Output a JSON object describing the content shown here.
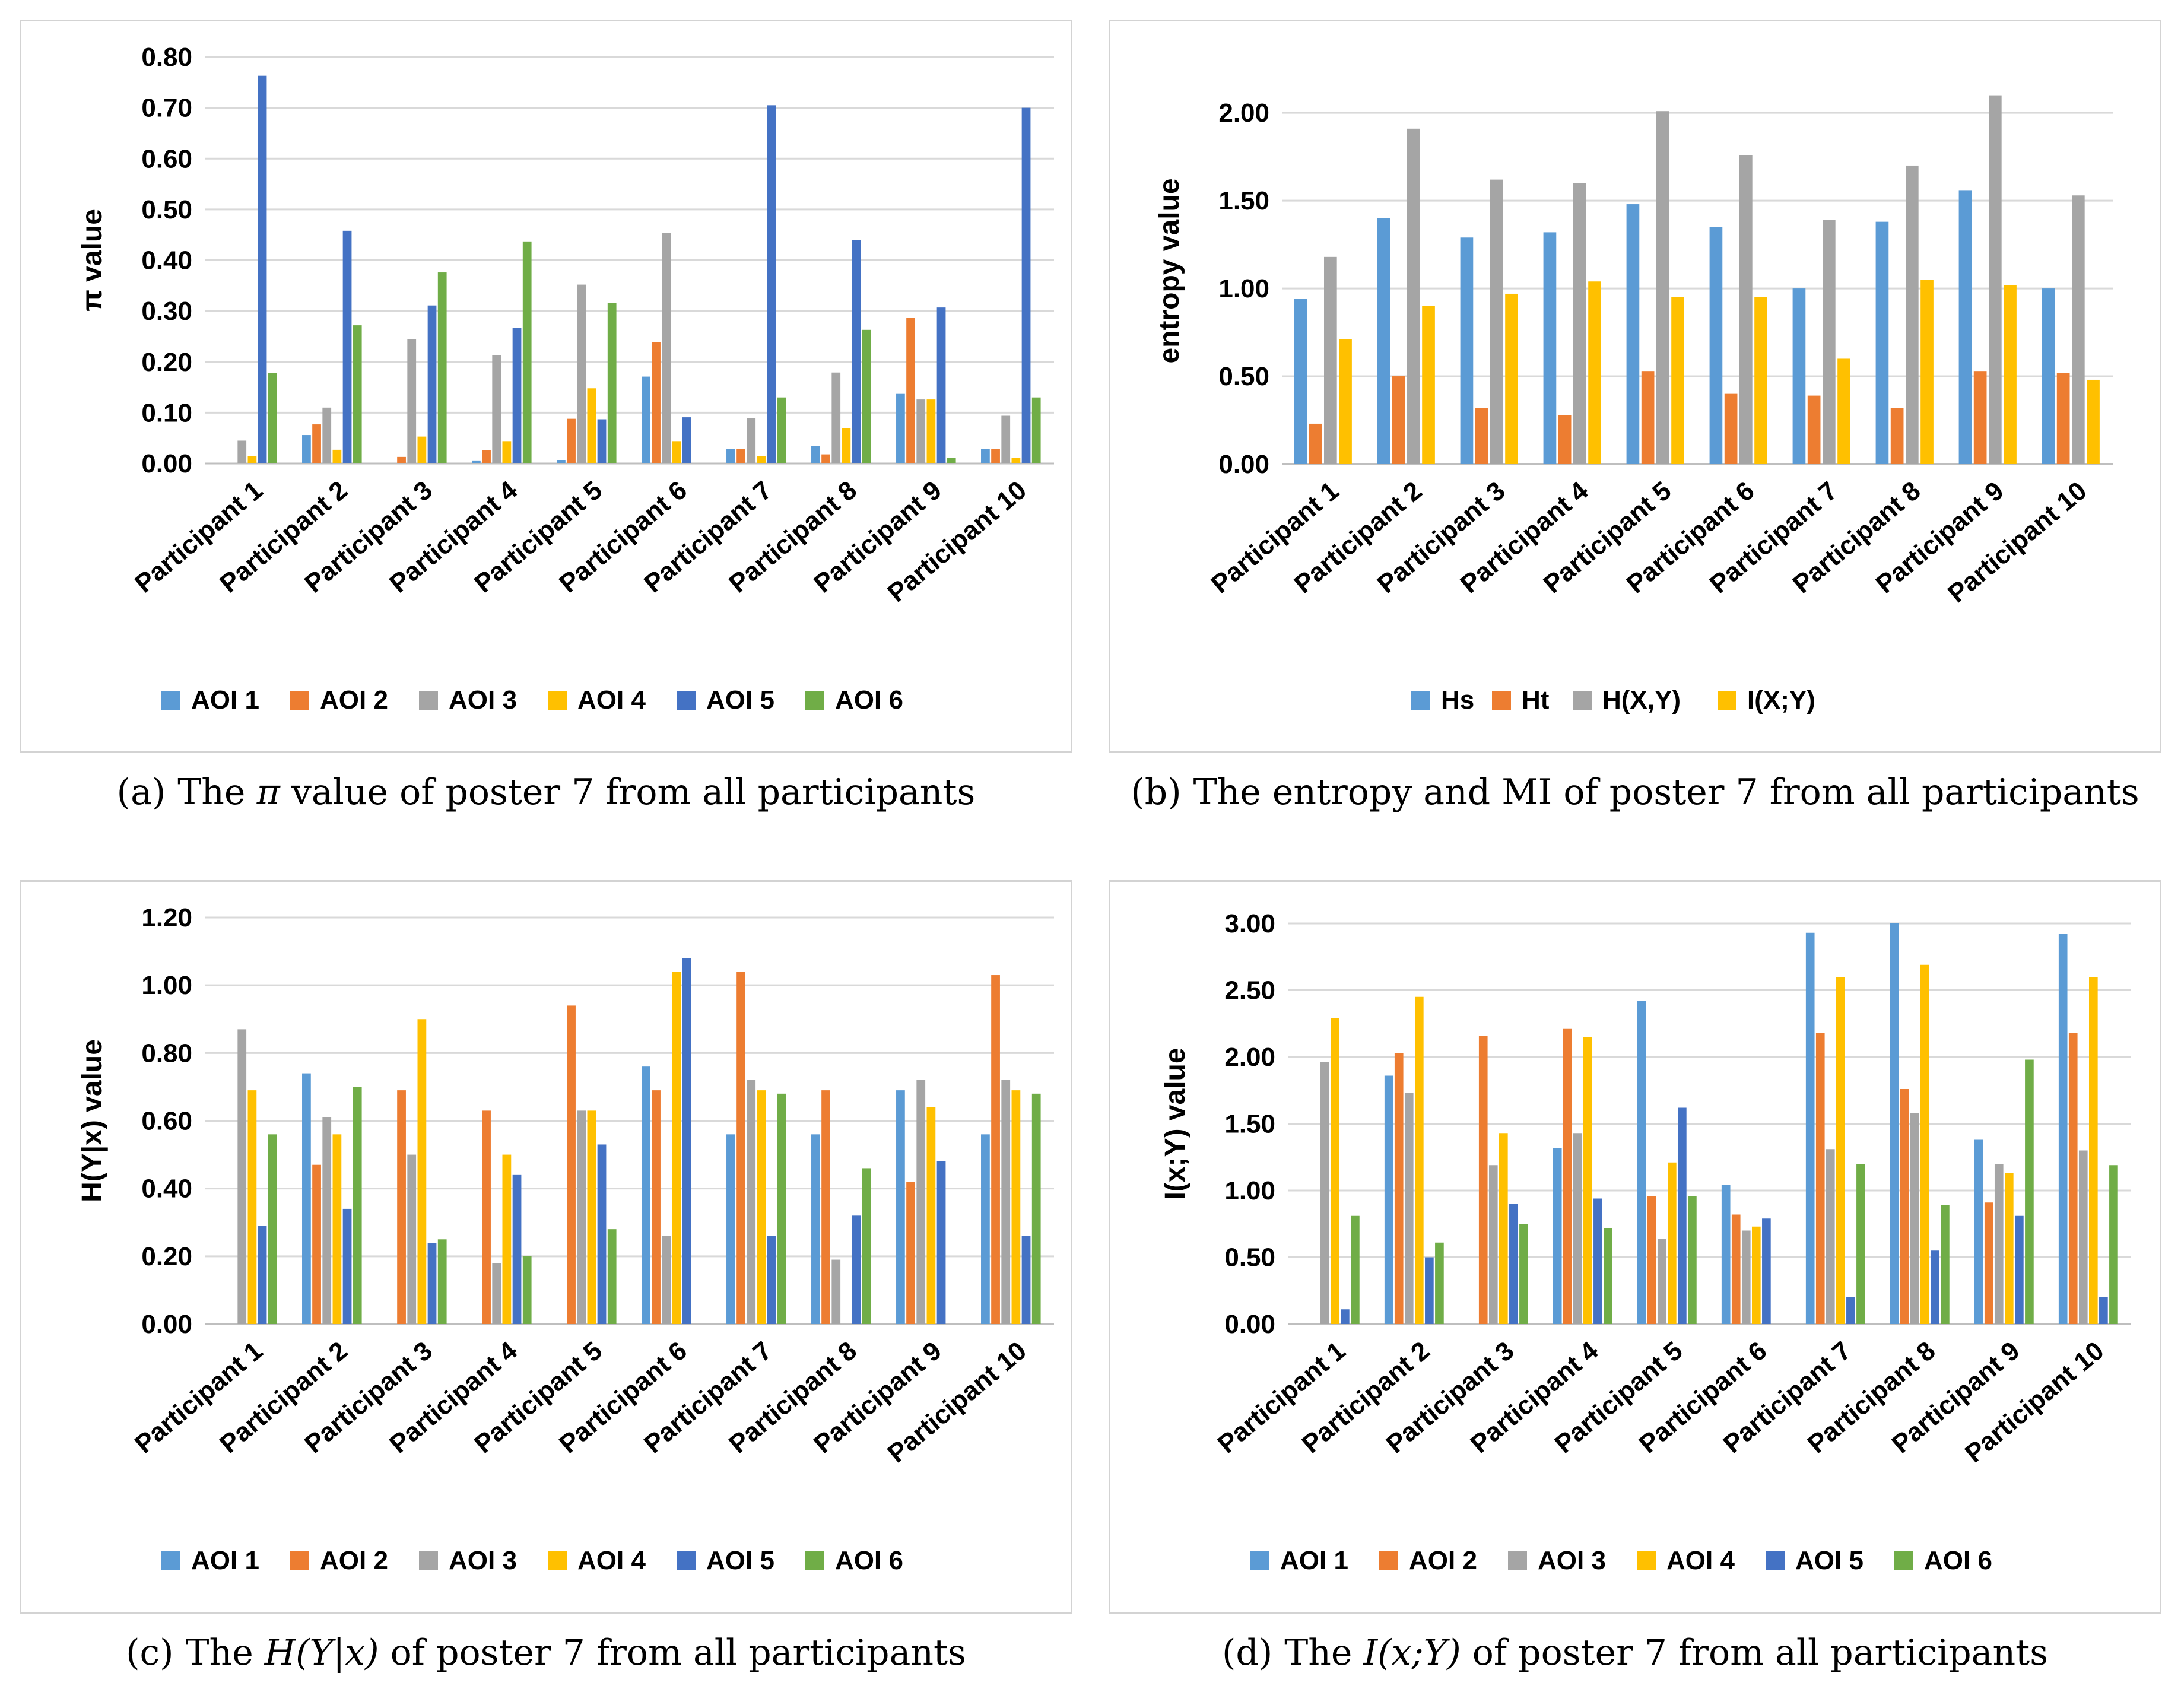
{
  "colors": [
    "#5b9bd5",
    "#ed7d31",
    "#a5a5a5",
    "#ffc000",
    "#4472c4",
    "#70ad47"
  ],
  "chart_data": [
    {
      "id": "a",
      "type": "bar",
      "ylabel": "π  value",
      "ylim": [
        0,
        0.8
      ],
      "ytick_step": 0.1,
      "yticks_decimals": 2,
      "grid": true,
      "legend_position": "bottom",
      "categories": [
        "Participant 1",
        "Participant 2",
        "Participant 3",
        "Participant 4",
        "Participant 5",
        "Participant 6",
        "Participant 7",
        "Participant 8",
        "Participant 9",
        "Participant 10"
      ],
      "series": [
        {
          "name": "AOI 1",
          "values": [
            0.0,
            0.056,
            0.0,
            0.006,
            0.007,
            0.171,
            0.029,
            0.034,
            0.137,
            0.029
          ]
        },
        {
          "name": "AOI 2",
          "values": [
            0.0,
            0.077,
            0.013,
            0.026,
            0.088,
            0.239,
            0.029,
            0.018,
            0.287,
            0.029
          ]
        },
        {
          "name": "AOI 3",
          "values": [
            0.045,
            0.11,
            0.245,
            0.213,
            0.352,
            0.454,
            0.089,
            0.179,
            0.126,
            0.094
          ]
        },
        {
          "name": "AOI 4",
          "values": [
            0.014,
            0.027,
            0.053,
            0.044,
            0.148,
            0.044,
            0.014,
            0.07,
            0.126,
            0.011
          ]
        },
        {
          "name": "AOI 5",
          "values": [
            0.763,
            0.458,
            0.311,
            0.267,
            0.087,
            0.091,
            0.705,
            0.44,
            0.307,
            0.7
          ]
        },
        {
          "name": "AOI 6",
          "values": [
            0.178,
            0.272,
            0.376,
            0.437,
            0.316,
            0.0,
            0.13,
            0.263,
            0.011,
            0.13
          ]
        }
      ]
    },
    {
      "id": "b",
      "type": "bar",
      "ylabel": "entropy  value",
      "ylim": [
        0,
        2.2
      ],
      "ytick_max": 2.0,
      "ytick_step": 0.5,
      "yticks_decimals": 2,
      "grid": true,
      "legend_position": "bottom",
      "categories": [
        "Participant 1",
        "Participant 2",
        "Participant 3",
        "Participant 4",
        "Participant 5",
        "Participant 6",
        "Participant 7",
        "Participant 8",
        "Participant 9",
        "Participant 10"
      ],
      "series": [
        {
          "name": "Hs",
          "values": [
            0.94,
            1.4,
            1.29,
            1.32,
            1.48,
            1.35,
            1.0,
            1.38,
            1.56,
            1.0
          ]
        },
        {
          "name": "Ht",
          "values": [
            0.23,
            0.5,
            0.32,
            0.28,
            0.53,
            0.4,
            0.39,
            0.32,
            0.53,
            0.52
          ]
        },
        {
          "name": "H(X,Y)",
          "values": [
            1.18,
            1.91,
            1.62,
            1.6,
            2.01,
            1.76,
            1.39,
            1.7,
            2.1,
            1.53
          ]
        },
        {
          "name": "I(X;Y)",
          "values": [
            0.71,
            0.9,
            0.97,
            1.04,
            0.95,
            0.95,
            0.6,
            1.05,
            1.02,
            0.48
          ]
        }
      ]
    },
    {
      "id": "c",
      "type": "bar",
      "ylabel": "H(Y|x)  value",
      "ylim": [
        0,
        1.2
      ],
      "ytick_step": 0.2,
      "yticks_decimals": 2,
      "grid": true,
      "legend_position": "bottom",
      "categories": [
        "Participant 1",
        "Participant 2",
        "Participant 3",
        "Participant 4",
        "Participant 5",
        "Participant 6",
        "Participant 7",
        "Participant 8",
        "Participant 9",
        "Participant 10"
      ],
      "series": [
        {
          "name": "AOI 1",
          "values": [
            0.0,
            0.74,
            0.0,
            0.0,
            0.0,
            0.76,
            0.56,
            0.56,
            0.69,
            0.56
          ]
        },
        {
          "name": "AOI 2",
          "values": [
            0.0,
            0.47,
            0.69,
            0.63,
            0.94,
            0.69,
            1.04,
            0.69,
            0.42,
            1.03
          ]
        },
        {
          "name": "AOI 3",
          "values": [
            0.87,
            0.61,
            0.5,
            0.18,
            0.63,
            0.26,
            0.72,
            0.19,
            0.72,
            0.72
          ]
        },
        {
          "name": "AOI 4",
          "values": [
            0.69,
            0.56,
            0.9,
            0.5,
            0.63,
            1.04,
            0.69,
            0.0,
            0.64,
            0.69
          ]
        },
        {
          "name": "AOI 5",
          "values": [
            0.29,
            0.34,
            0.24,
            0.44,
            0.53,
            1.08,
            0.26,
            0.32,
            0.48,
            0.26
          ]
        },
        {
          "name": "AOI 6",
          "values": [
            0.56,
            0.7,
            0.25,
            0.2,
            0.28,
            0.0,
            0.68,
            0.46,
            0.0,
            0.68
          ]
        }
      ]
    },
    {
      "id": "d",
      "type": "bar",
      "ylabel": "I(x;Y)  value",
      "ylim": [
        0,
        3.0
      ],
      "ytick_step": 0.5,
      "yticks_decimals": 2,
      "grid": true,
      "legend_position": "bottom",
      "categories": [
        "Participant 1",
        "Participant 2",
        "Participant 3",
        "Participant 4",
        "Participant 5",
        "Participant 6",
        "Participant 7",
        "Participant 8",
        "Participant 9",
        "Participant 10"
      ],
      "series": [
        {
          "name": "AOI 1",
          "values": [
            0.0,
            1.86,
            0.0,
            1.32,
            2.42,
            1.04,
            2.93,
            3.0,
            1.38,
            2.92
          ]
        },
        {
          "name": "AOI 2",
          "values": [
            0.0,
            2.03,
            2.16,
            2.21,
            0.96,
            0.82,
            2.18,
            1.76,
            0.91,
            2.18
          ]
        },
        {
          "name": "AOI 3",
          "values": [
            1.96,
            1.73,
            1.19,
            1.43,
            0.64,
            0.7,
            1.31,
            1.58,
            1.2,
            1.3
          ]
        },
        {
          "name": "AOI 4",
          "values": [
            2.29,
            2.45,
            1.43,
            2.15,
            1.21,
            0.73,
            2.6,
            2.69,
            1.13,
            2.6
          ]
        },
        {
          "name": "AOI 5",
          "values": [
            0.11,
            0.5,
            0.9,
            0.94,
            1.62,
            0.79,
            0.2,
            0.55,
            0.81,
            0.2
          ]
        },
        {
          "name": "AOI 6",
          "values": [
            0.81,
            0.61,
            0.75,
            0.72,
            0.96,
            0.0,
            1.2,
            0.89,
            1.98,
            1.19
          ]
        }
      ]
    }
  ],
  "captions": [
    {
      "label": "(a)",
      "before": "The ",
      "math": "π",
      "after": " value of poster 7 from all participants"
    },
    {
      "label": "(b)",
      "before": "The entropy and MI of poster 7 from all participants",
      "math": "",
      "after": ""
    },
    {
      "label": "(c)",
      "before": "The ",
      "math": "H(Y|x)",
      "after": " of poster 7 from all participants"
    },
    {
      "label": "(d)",
      "before": "The ",
      "math": "I(x;Y)",
      "after": " of poster 7 from all participants"
    }
  ]
}
